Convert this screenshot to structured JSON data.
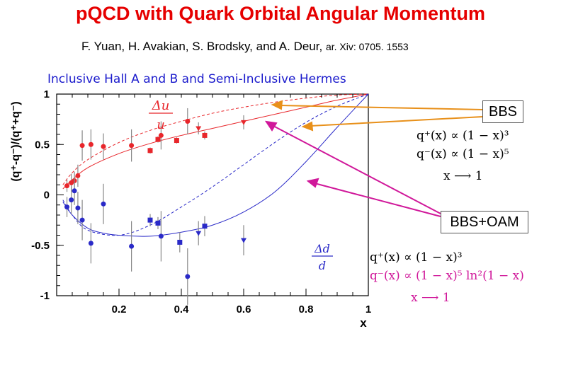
{
  "header": {
    "title": "pQCD with Quark Orbital Angular Momentum",
    "authors": "F. Yuan, H. Avakian, S. Brodsky, and A. Deur,",
    "arxiv": "ar. Xiv: 0705. 1553",
    "subtitle": "Inclusive Hall A and B and Semi-Inclusive Hermes"
  },
  "annotations": {
    "bbs_box": "BBS",
    "bbs_oam_box": "BBS+OAM",
    "du_num": "Δu",
    "du_den": "u",
    "dd_num": "Δd",
    "dd_den": "d",
    "bbs_line1": "q⁺(x) ∝ (1 − x)³",
    "bbs_line2": "q⁻(x) ∝ (1 − x)⁵",
    "bbs_line3": "x ⟶ 1",
    "oam_line1": "q⁺(x) ∝ (1 − x)³",
    "oam_line2": "q⁻(x) ∝ (1 − x)⁵ ln²(1 − x)",
    "oam_line3": "x ⟶ 1"
  },
  "colors": {
    "title": "#e60000",
    "red_series": "#e8262b",
    "blue_series": "#2a2ac8",
    "arrow_orange": "#e8901a",
    "arrow_magenta": "#d0189a"
  },
  "chart_data": {
    "type": "scatter",
    "xlabel": "x",
    "ylabel": "(q⁺-q⁻)/(q⁺+q⁻)",
    "xlim": [
      0,
      1
    ],
    "ylim": [
      -1,
      1
    ],
    "xticks": [
      "0.2",
      "0.4",
      "0.6",
      "0.8",
      "1"
    ],
    "yticks": [
      "-1",
      "-0.5",
      "0",
      "0.5",
      "1"
    ],
    "series": [
      {
        "color": "#e8262b",
        "points": [
          {
            "x": 0.033,
            "y": 0.09,
            "err": 0.06,
            "marker": "circle"
          },
          {
            "x": 0.047,
            "y": 0.12,
            "err": 0.09,
            "marker": "circle"
          },
          {
            "x": 0.057,
            "y": 0.14,
            "err": 0.09,
            "marker": "circle"
          },
          {
            "x": 0.068,
            "y": 0.19,
            "err": 0.11,
            "marker": "circle"
          },
          {
            "x": 0.082,
            "y": 0.49,
            "err": 0.15,
            "marker": "circle"
          },
          {
            "x": 0.11,
            "y": 0.5,
            "err": 0.15,
            "marker": "circle"
          },
          {
            "x": 0.15,
            "y": 0.48,
            "err": 0.13,
            "marker": "circle"
          },
          {
            "x": 0.24,
            "y": 0.49,
            "err": 0.16,
            "marker": "circle"
          },
          {
            "x": 0.335,
            "y": 0.59,
            "err": 0.14,
            "marker": "circle"
          },
          {
            "x": 0.42,
            "y": 0.73,
            "err": 0.13,
            "marker": "circle"
          },
          {
            "x": 0.3,
            "y": 0.44,
            "err": 0.03,
            "marker": "square"
          },
          {
            "x": 0.325,
            "y": 0.55,
            "err": 0.03,
            "marker": "square"
          },
          {
            "x": 0.385,
            "y": 0.54,
            "err": 0.03,
            "marker": "square"
          },
          {
            "x": 0.475,
            "y": 0.59,
            "err": 0.04,
            "marker": "square"
          },
          {
            "x": 0.455,
            "y": 0.66,
            "err": 0.06,
            "marker": "triangle"
          },
          {
            "x": 0.6,
            "y": 0.72,
            "err": 0.07,
            "marker": "triangle"
          }
        ]
      },
      {
        "color": "#2a2ac8",
        "points": [
          {
            "x": 0.033,
            "y": -0.12,
            "err": 0.1,
            "marker": "circle"
          },
          {
            "x": 0.047,
            "y": -0.05,
            "err": 0.14,
            "marker": "circle"
          },
          {
            "x": 0.057,
            "y": 0.04,
            "err": 0.14,
            "marker": "circle"
          },
          {
            "x": 0.068,
            "y": -0.13,
            "err": 0.16,
            "marker": "circle"
          },
          {
            "x": 0.082,
            "y": -0.25,
            "err": 0.2,
            "marker": "circle"
          },
          {
            "x": 0.11,
            "y": -0.48,
            "err": 0.2,
            "marker": "circle"
          },
          {
            "x": 0.15,
            "y": -0.09,
            "err": 0.2,
            "marker": "circle"
          },
          {
            "x": 0.24,
            "y": -0.51,
            "err": 0.25,
            "marker": "circle"
          },
          {
            "x": 0.335,
            "y": -0.41,
            "err": 0.25,
            "marker": "circle"
          },
          {
            "x": 0.42,
            "y": -0.81,
            "err": 0.28,
            "marker": "circle"
          },
          {
            "x": 0.3,
            "y": -0.25,
            "err": 0.06,
            "marker": "square"
          },
          {
            "x": 0.325,
            "y": -0.28,
            "err": 0.06,
            "marker": "square"
          },
          {
            "x": 0.395,
            "y": -0.47,
            "err": 0.1,
            "marker": "square"
          },
          {
            "x": 0.475,
            "y": -0.31,
            "err": 0.1,
            "marker": "square"
          },
          {
            "x": 0.455,
            "y": -0.38,
            "err": 0.12,
            "marker": "triangle"
          },
          {
            "x": 0.6,
            "y": -0.45,
            "err": 0.15,
            "marker": "triangle"
          }
        ]
      }
    ],
    "curves": [
      {
        "color": "#e8262b",
        "style": "solid",
        "x": [
          0.02,
          0.05,
          0.1,
          0.2,
          0.3,
          0.4,
          0.5,
          0.6,
          0.7,
          0.8,
          0.9,
          1.0
        ],
        "y": [
          0.06,
          0.15,
          0.27,
          0.41,
          0.51,
          0.59,
          0.66,
          0.73,
          0.8,
          0.87,
          0.94,
          1.0
        ]
      },
      {
        "color": "#e8262b",
        "style": "dashed",
        "x": [
          0.02,
          0.05,
          0.1,
          0.2,
          0.3,
          0.4,
          0.5,
          0.6,
          0.7,
          0.8,
          0.9,
          1.0
        ],
        "y": [
          0.1,
          0.22,
          0.35,
          0.52,
          0.64,
          0.73,
          0.81,
          0.87,
          0.92,
          0.96,
          0.99,
          1.0
        ]
      },
      {
        "color": "#2a2ac8",
        "style": "solid",
        "x": [
          0.02,
          0.05,
          0.1,
          0.15,
          0.2,
          0.3,
          0.4,
          0.5,
          0.6,
          0.7,
          0.8,
          0.9,
          1.0
        ],
        "y": [
          -0.07,
          -0.2,
          -0.33,
          -0.38,
          -0.4,
          -0.41,
          -0.37,
          -0.3,
          -0.17,
          0.03,
          0.33,
          0.67,
          1.0
        ]
      },
      {
        "color": "#2a2ac8",
        "style": "dashed",
        "x": [
          0.02,
          0.05,
          0.1,
          0.2,
          0.3,
          0.4,
          0.5,
          0.6,
          0.7,
          0.8,
          0.9,
          1.0
        ],
        "y": [
          -0.05,
          -0.2,
          -0.35,
          -0.4,
          -0.3,
          -0.12,
          0.08,
          0.3,
          0.52,
          0.72,
          0.88,
          1.0
        ]
      }
    ]
  }
}
